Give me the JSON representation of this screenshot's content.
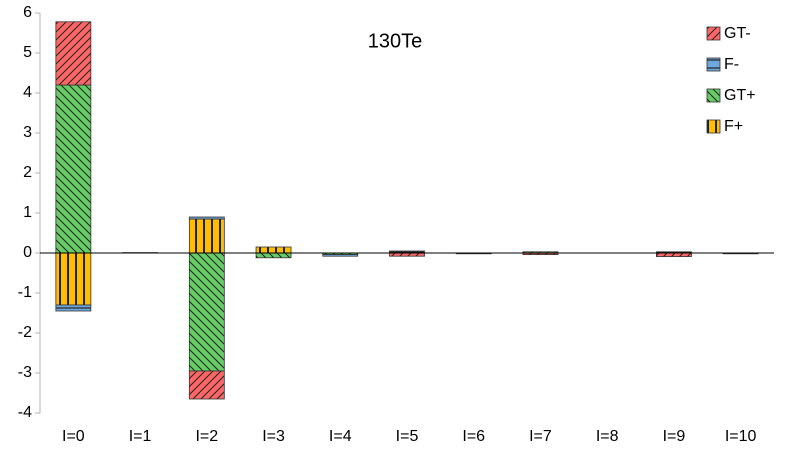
{
  "chart_data": {
    "type": "stacked-bar",
    "title": "130Te",
    "categories": [
      "I=0",
      "I=1",
      "I=2",
      "I=3",
      "I=4",
      "I=5",
      "I=6",
      "I=7",
      "I=8",
      "I=9",
      "I=10"
    ],
    "series": [
      {
        "name": "GT-",
        "color": "#ff6666",
        "values": [
          1.58,
          0,
          -0.7,
          0,
          0,
          -0.08,
          -0.02,
          -0.04,
          0,
          -0.09,
          -0.02
        ]
      },
      {
        "name": "F-",
        "color": "#6fa8dc",
        "values": [
          -0.15,
          0,
          0.05,
          0,
          -0.04,
          0.05,
          0,
          0,
          0,
          0.03,
          0
        ]
      },
      {
        "name": "GT+",
        "color": "#66cc66",
        "values": [
          4.2,
          0.01,
          -2.95,
          -0.12,
          -0.04,
          0,
          0,
          0.03,
          0,
          0,
          0
        ]
      },
      {
        "name": "F+",
        "color": "#ffbf00",
        "values": [
          -1.3,
          0,
          0.85,
          0.15,
          0,
          0,
          0,
          0,
          0,
          0,
          0
        ]
      }
    ],
    "ylim": [
      -4,
      6
    ],
    "yticks": [
      -4,
      -3,
      -2,
      -1,
      0,
      1,
      2,
      3,
      4,
      5,
      6
    ],
    "grid": false
  }
}
